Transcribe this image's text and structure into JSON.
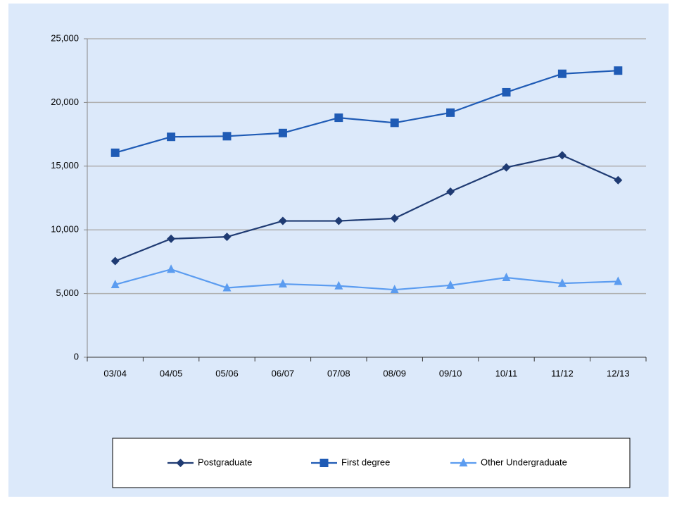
{
  "chart_data": {
    "type": "line",
    "categories": [
      "03/04",
      "04/05",
      "05/06",
      "06/07",
      "07/08",
      "08/09",
      "09/10",
      "10/11",
      "11/12",
      "12/13"
    ],
    "series": [
      {
        "name": "Postgraduate",
        "color": "#1f3b73",
        "marker": "diamond",
        "values": [
          7550,
          9300,
          9450,
          10700,
          10700,
          10900,
          13000,
          14900,
          15850,
          13900
        ]
      },
      {
        "name": "First degree",
        "color": "#1f5bb5",
        "marker": "square",
        "values": [
          16050,
          17300,
          17350,
          17600,
          18800,
          18400,
          19200,
          20800,
          22250,
          22500
        ]
      },
      {
        "name": "Other Undergraduate",
        "color": "#5b9cf0",
        "marker": "triangle",
        "values": [
          5700,
          6900,
          5450,
          5750,
          5600,
          5300,
          5650,
          6250,
          5800,
          5950
        ]
      }
    ],
    "ylim": [
      0,
      25000
    ],
    "yticks": [
      0,
      {
        "value": 5000,
        "label": "5,000"
      },
      {
        "value": 10000,
        "label": "10,000"
      },
      {
        "value": 15000,
        "label": "15,000"
      },
      {
        "value": 20000,
        "label": "20,000"
      },
      {
        "value": 25000,
        "label": "25,000"
      }
    ],
    "grid": true,
    "legend": "bottom"
  }
}
